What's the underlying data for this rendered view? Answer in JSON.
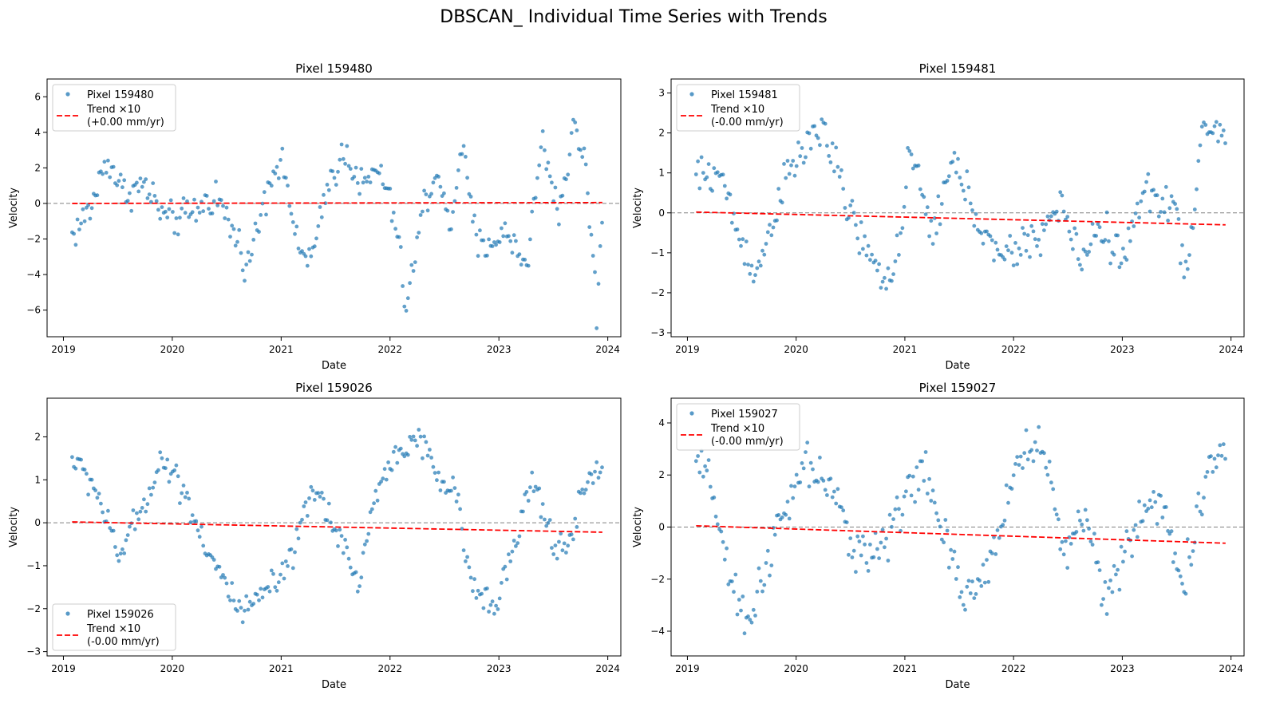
{
  "figure": {
    "title": "DBSCAN_ Individual Time Series with Trends",
    "point_color": "#1f77b4",
    "trend_color": "#ff0000",
    "zero_line_color": "#808080"
  },
  "chart_data": [
    {
      "type": "scatter",
      "title": "Pixel 159480",
      "xlabel": "Date",
      "ylabel": "Velocity",
      "x_ticks": [
        "2019",
        "2020",
        "2021",
        "2022",
        "2023",
        "2024"
      ],
      "x_range": [
        2018.85,
        2024.12
      ],
      "y_range": [
        -7.5,
        7.0
      ],
      "y_ticks": [
        -6,
        -4,
        -2,
        0,
        2,
        4,
        6
      ],
      "legend_position": "top-left",
      "legend": {
        "points_label": "Pixel 159480",
        "trend_label": "Trend ×10",
        "trend_rate": "(+0.00 mm/yr)"
      },
      "trend": {
        "x": [
          2019.08,
          2023.95
        ],
        "y": [
          0.0,
          0.05
        ]
      },
      "control_points": [
        [
          2019.08,
          -1.8
        ],
        [
          2019.25,
          -0.3
        ],
        [
          2019.4,
          2.6
        ],
        [
          2019.55,
          0.6
        ],
        [
          2019.75,
          1.0
        ],
        [
          2019.95,
          -1.0
        ],
        [
          2020.15,
          -0.7
        ],
        [
          2020.4,
          0.5
        ],
        [
          2020.55,
          -1.5
        ],
        [
          2020.7,
          -3.5
        ],
        [
          2020.85,
          0.5
        ],
        [
          2020.95,
          2.4
        ],
        [
          2021.05,
          1.5
        ],
        [
          2021.15,
          -2.8
        ],
        [
          2021.3,
          -2.9
        ],
        [
          2021.45,
          1.5
        ],
        [
          2021.6,
          3.0
        ],
        [
          2021.75,
          0.8
        ],
        [
          2021.9,
          2.0
        ],
        [
          2022.05,
          -1.0
        ],
        [
          2022.15,
          -6.0
        ],
        [
          2022.3,
          -0.3
        ],
        [
          2022.45,
          2.0
        ],
        [
          2022.55,
          -2.0
        ],
        [
          2022.65,
          3.5
        ],
        [
          2022.8,
          -2.5
        ],
        [
          2022.95,
          -2.0
        ],
        [
          2023.1,
          -1.8
        ],
        [
          2023.25,
          -3.5
        ],
        [
          2023.4,
          3.5
        ],
        [
          2023.55,
          -0.5
        ],
        [
          2023.7,
          4.5
        ],
        [
          2023.8,
          2.0
        ],
        [
          2023.9,
          -6.2
        ],
        [
          2023.95,
          -0.5
        ]
      ],
      "amplitude": 1.0
    },
    {
      "type": "scatter",
      "title": "Pixel 159481",
      "xlabel": "Date",
      "ylabel": "Velocity",
      "x_ticks": [
        "2019",
        "2020",
        "2021",
        "2022",
        "2023",
        "2024"
      ],
      "x_range": [
        2018.85,
        2024.12
      ],
      "y_range": [
        -3.1,
        3.35
      ],
      "y_ticks": [
        -3,
        -2,
        -1,
        0,
        1,
        2,
        3
      ],
      "legend_position": "top-left",
      "legend": {
        "points_label": "Pixel 159481",
        "trend_label": "Trend ×10",
        "trend_rate": "(-0.00 mm/yr)"
      },
      "trend": {
        "x": [
          2019.08,
          2023.95
        ],
        "y": [
          0.02,
          -0.3
        ]
      },
      "control_points": [
        [
          2019.08,
          0.9
        ],
        [
          2019.3,
          1.0
        ],
        [
          2019.5,
          -0.8
        ],
        [
          2019.65,
          -1.5
        ],
        [
          2019.85,
          0.5
        ],
        [
          2020.05,
          1.5
        ],
        [
          2020.25,
          2.2
        ],
        [
          2020.45,
          0.3
        ],
        [
          2020.65,
          -1.0
        ],
        [
          2020.8,
          -1.8
        ],
        [
          2020.95,
          -0.8
        ],
        [
          2021.05,
          1.5
        ],
        [
          2021.25,
          -0.5
        ],
        [
          2021.45,
          1.3
        ],
        [
          2021.65,
          0.0
        ],
        [
          2021.85,
          -1.2
        ],
        [
          2022.05,
          -0.9
        ],
        [
          2022.25,
          -0.5
        ],
        [
          2022.45,
          0.2
        ],
        [
          2022.6,
          -1.2
        ],
        [
          2022.8,
          -0.3
        ],
        [
          2023.0,
          -1.2
        ],
        [
          2023.2,
          0.5
        ],
        [
          2023.45,
          0.3
        ],
        [
          2023.6,
          -1.5
        ],
        [
          2023.75,
          2.2
        ],
        [
          2023.9,
          2.0
        ]
      ],
      "amplitude": 0.5
    },
    {
      "type": "scatter",
      "title": "Pixel 159026",
      "xlabel": "Date",
      "ylabel": "Velocity",
      "x_ticks": [
        "2019",
        "2020",
        "2021",
        "2022",
        "2023",
        "2024"
      ],
      "x_range": [
        2018.85,
        2024.12
      ],
      "y_range": [
        -3.1,
        2.9
      ],
      "y_ticks": [
        -3,
        -2,
        -1,
        0,
        1,
        2
      ],
      "legend_position": "bottom-left",
      "legend": {
        "points_label": "Pixel 159026",
        "trend_label": "Trend ×10",
        "trend_rate": "(-0.00 mm/yr)"
      },
      "trend": {
        "x": [
          2019.08,
          2023.95
        ],
        "y": [
          0.02,
          -0.22
        ]
      },
      "control_points": [
        [
          2019.08,
          1.5
        ],
        [
          2019.3,
          0.8
        ],
        [
          2019.5,
          -0.8
        ],
        [
          2019.7,
          0.2
        ],
        [
          2019.9,
          1.5
        ],
        [
          2020.1,
          0.8
        ],
        [
          2020.3,
          -0.5
        ],
        [
          2020.5,
          -1.5
        ],
        [
          2020.65,
          -2.2
        ],
        [
          2020.85,
          -1.6
        ],
        [
          2021.05,
          -1.2
        ],
        [
          2021.3,
          0.8
        ],
        [
          2021.55,
          -0.3
        ],
        [
          2021.7,
          -1.5
        ],
        [
          2021.85,
          0.5
        ],
        [
          2022.05,
          1.6
        ],
        [
          2022.25,
          2.0
        ],
        [
          2022.45,
          1.0
        ],
        [
          2022.6,
          0.7
        ],
        [
          2022.75,
          -1.5
        ],
        [
          2022.95,
          -1.8
        ],
        [
          2023.1,
          -1.0
        ],
        [
          2023.3,
          1.0
        ],
        [
          2023.5,
          -0.5
        ],
        [
          2023.65,
          -0.5
        ],
        [
          2023.8,
          1.0
        ],
        [
          2023.95,
          1.2
        ]
      ],
      "amplitude": 0.35
    },
    {
      "type": "scatter",
      "title": "Pixel 159027",
      "xlabel": "Date",
      "ylabel": "Velocity",
      "x_ticks": [
        "2019",
        "2020",
        "2021",
        "2022",
        "2023",
        "2024"
      ],
      "x_range": [
        2018.85,
        2024.12
      ],
      "y_range": [
        -4.95,
        4.95
      ],
      "y_ticks": [
        -4,
        -2,
        0,
        2,
        4
      ],
      "legend_position": "top-left",
      "legend": {
        "points_label": "Pixel 159027",
        "trend_label": "Trend ×10",
        "trend_rate": "(-0.00 mm/yr)"
      },
      "trend": {
        "x": [
          2019.08,
          2023.95
        ],
        "y": [
          0.05,
          -0.62
        ]
      },
      "control_points": [
        [
          2019.08,
          2.5
        ],
        [
          2019.25,
          1.2
        ],
        [
          2019.4,
          -2.5
        ],
        [
          2019.55,
          -3.8
        ],
        [
          2019.75,
          -1.0
        ],
        [
          2019.95,
          1.0
        ],
        [
          2020.1,
          2.5
        ],
        [
          2020.3,
          1.5
        ],
        [
          2020.5,
          -0.5
        ],
        [
          2020.7,
          -1.0
        ],
        [
          2020.85,
          -0.5
        ],
        [
          2021.0,
          1.5
        ],
        [
          2021.2,
          2.0
        ],
        [
          2021.4,
          -1.0
        ],
        [
          2021.55,
          -3.0
        ],
        [
          2021.75,
          -1.5
        ],
        [
          2021.95,
          1.0
        ],
        [
          2022.1,
          3.2
        ],
        [
          2022.3,
          2.8
        ],
        [
          2022.45,
          -1.0
        ],
        [
          2022.65,
          0.5
        ],
        [
          2022.85,
          -2.5
        ],
        [
          2023.05,
          -1.0
        ],
        [
          2023.25,
          1.2
        ],
        [
          2023.4,
          0.3
        ],
        [
          2023.55,
          -2.3
        ],
        [
          2023.7,
          0.5
        ],
        [
          2023.85,
          2.5
        ],
        [
          2023.95,
          3.5
        ]
      ],
      "amplitude": 0.9
    }
  ]
}
